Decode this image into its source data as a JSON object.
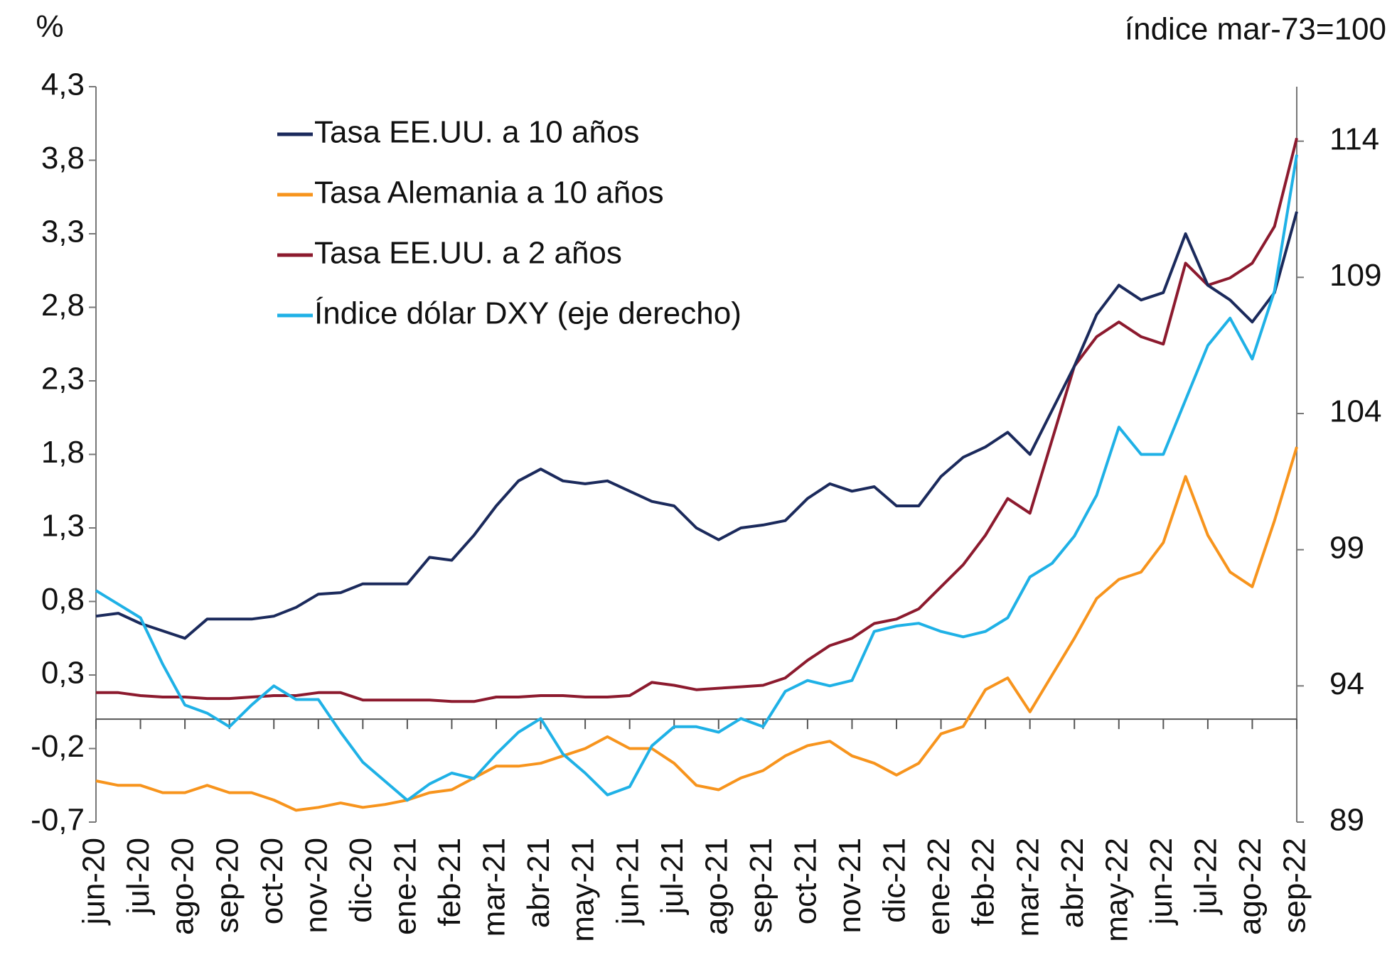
{
  "chart_data": {
    "type": "line",
    "y_axis_label": "%",
    "y2_axis_label": "índice mar-73=100",
    "categories": [
      "jun-20",
      null,
      "jul-20",
      null,
      "ago-20",
      null,
      "sep-20",
      null,
      "oct-20",
      null,
      "nov-20",
      null,
      "dic-20",
      null,
      "ene-21",
      null,
      "feb-21",
      null,
      "mar-21",
      null,
      "abr-21",
      null,
      "may-21",
      null,
      "jun-21",
      null,
      "jul-21",
      null,
      "ago-21",
      null,
      "sep-21",
      null,
      "oct-21",
      null,
      "nov-21",
      null,
      "dic-21",
      null,
      "ene-22",
      null,
      "feb-22",
      null,
      "mar-22",
      null,
      "abr-22",
      null,
      "may-22",
      null,
      "jun-22",
      null,
      "jul-22",
      null,
      "ago-22",
      null,
      "sep-22"
    ],
    "series": [
      {
        "name": "Tasa EE.UU. a 10 años",
        "color": "#1b2a5c",
        "values": [
          0.7,
          0.72,
          0.65,
          0.6,
          0.55,
          0.68,
          0.68,
          0.68,
          0.7,
          0.76,
          0.85,
          0.86,
          0.92,
          0.92,
          0.92,
          1.1,
          1.08,
          1.25,
          1.45,
          1.62,
          1.7,
          1.62,
          1.6,
          1.62,
          1.55,
          1.48,
          1.45,
          1.3,
          1.22,
          1.3,
          1.32,
          1.35,
          1.5,
          1.6,
          1.55,
          1.58,
          1.45,
          1.45,
          1.65,
          1.78,
          1.85,
          1.95,
          1.8,
          2.1,
          2.4,
          2.75,
          2.95,
          2.85,
          2.9,
          3.3,
          2.95,
          2.85,
          2.7,
          2.9,
          3.45
        ]
      },
      {
        "name": "Tasa Alemania a 10 años",
        "color": "#f7941d",
        "values": [
          -0.42,
          -0.45,
          -0.45,
          -0.5,
          -0.5,
          -0.45,
          -0.5,
          -0.5,
          -0.55,
          -0.62,
          -0.6,
          -0.57,
          -0.6,
          -0.58,
          -0.55,
          -0.5,
          -0.48,
          -0.4,
          -0.32,
          -0.32,
          -0.3,
          -0.25,
          -0.2,
          -0.12,
          -0.2,
          -0.2,
          -0.3,
          -0.45,
          -0.48,
          -0.4,
          -0.35,
          -0.25,
          -0.18,
          -0.15,
          -0.25,
          -0.3,
          -0.38,
          -0.3,
          -0.1,
          -0.05,
          0.2,
          0.28,
          0.05,
          0.3,
          0.55,
          0.82,
          0.95,
          1.0,
          1.2,
          1.65,
          1.25,
          1.0,
          0.9,
          1.35,
          1.85
        ]
      },
      {
        "name": "Tasa EE.UU. a 2 años",
        "color": "#8c1a2e",
        "values": [
          0.18,
          0.18,
          0.16,
          0.15,
          0.15,
          0.14,
          0.14,
          0.15,
          0.16,
          0.16,
          0.18,
          0.18,
          0.13,
          0.13,
          0.13,
          0.13,
          0.12,
          0.12,
          0.15,
          0.15,
          0.16,
          0.16,
          0.15,
          0.15,
          0.16,
          0.25,
          0.23,
          0.2,
          0.21,
          0.22,
          0.23,
          0.28,
          0.4,
          0.5,
          0.55,
          0.65,
          0.68,
          0.75,
          0.9,
          1.05,
          1.25,
          1.5,
          1.4,
          1.9,
          2.4,
          2.6,
          2.7,
          2.6,
          2.55,
          3.1,
          2.95,
          3.0,
          3.1,
          3.35,
          3.95
        ]
      },
      {
        "name": "Índice dólar DXY (eje derecho)",
        "color": "#1fb1e6",
        "axis": "y2",
        "values": [
          97.5,
          97,
          96.5,
          94.8,
          93.3,
          93,
          92.5,
          93.3,
          94,
          93.5,
          93.5,
          92.3,
          91.2,
          90.5,
          89.8,
          90.4,
          90.8,
          90.6,
          91.5,
          92.3,
          92.8,
          91.5,
          90.8,
          90,
          90.3,
          91.8,
          92.5,
          92.5,
          92.3,
          92.8,
          92.5,
          93.8,
          94.2,
          94,
          94.2,
          96,
          96.2,
          96.3,
          96,
          95.8,
          96,
          96.5,
          98,
          98.5,
          99.5,
          101,
          103.5,
          102.5,
          102.5,
          104.5,
          106.5,
          107.5,
          106,
          108.5,
          113.5
        ]
      }
    ],
    "ylim": [
      -0.7,
      4.3
    ],
    "yticks": [
      {
        "value": -0.7,
        "label": "-0,7"
      },
      {
        "value": -0.2,
        "label": "-0,2"
      },
      {
        "value": 0.3,
        "label": "0,3"
      },
      {
        "value": 0.8,
        "label": "0,8"
      },
      {
        "value": 1.3,
        "label": "1,3"
      },
      {
        "value": 1.8,
        "label": "1,8"
      },
      {
        "value": 2.3,
        "label": "2,3"
      },
      {
        "value": 2.8,
        "label": "2,8"
      },
      {
        "value": 3.3,
        "label": "3,3"
      },
      {
        "value": 3.8,
        "label": "3,8"
      },
      {
        "value": 4.3,
        "label": "4,3"
      }
    ],
    "y2lim": [
      89,
      116
    ],
    "y2ticks": [
      89,
      94,
      99,
      104,
      109,
      114
    ],
    "grid": false,
    "legend": "top-left"
  }
}
